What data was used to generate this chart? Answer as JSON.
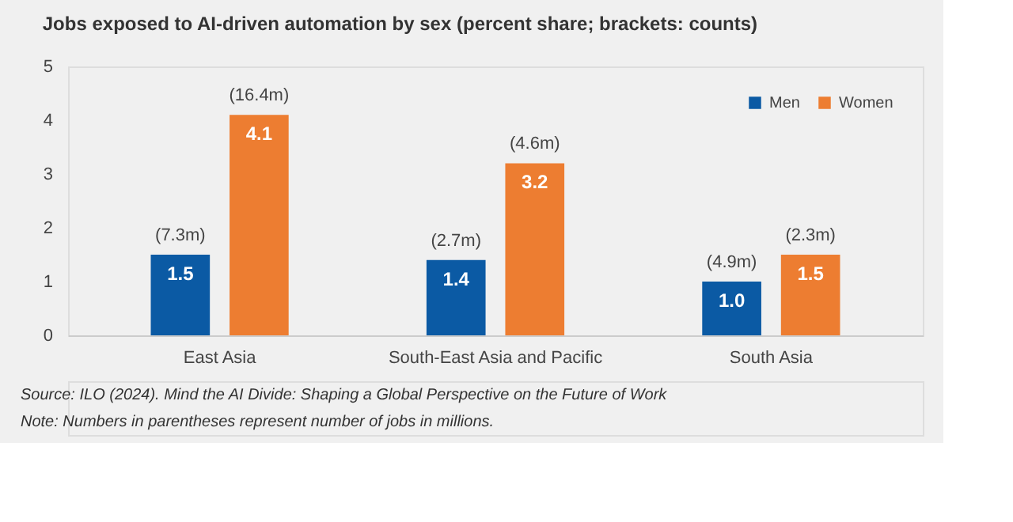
{
  "chart_data": {
    "type": "bar",
    "title": "Jobs exposed to AI-driven automation by sex (percent share; brackets: counts)",
    "categories": [
      "East Asia",
      "South-East Asia and Pacific",
      "South Asia"
    ],
    "series": [
      {
        "name": "Men",
        "color": "#0b5aa4",
        "values": [
          1.5,
          1.4,
          1.0
        ],
        "value_labels": [
          "1.5",
          "1.4",
          "1.0"
        ]
      },
      {
        "name": "Women",
        "color": "#ed7d31",
        "values": [
          4.1,
          3.2,
          1.5
        ],
        "value_labels": [
          "4.1",
          "3.2",
          "1.5"
        ]
      }
    ],
    "ylim": [
      0,
      5
    ],
    "yticks": [
      0,
      1,
      2,
      3,
      4,
      5
    ],
    "grid": false,
    "legend": "top right",
    "annotations": [
      "(7.3m)",
      "(16.4m)",
      "(2.7m)",
      "(4.6m)",
      "(4.9m)",
      "(2.3m)",
      "Source: ILO (2024). Mind the AI Divide: Shaping a Global Perspective on the Future of Work",
      "Note: Numbers in parentheses represent number of jobs in millions."
    ]
  }
}
